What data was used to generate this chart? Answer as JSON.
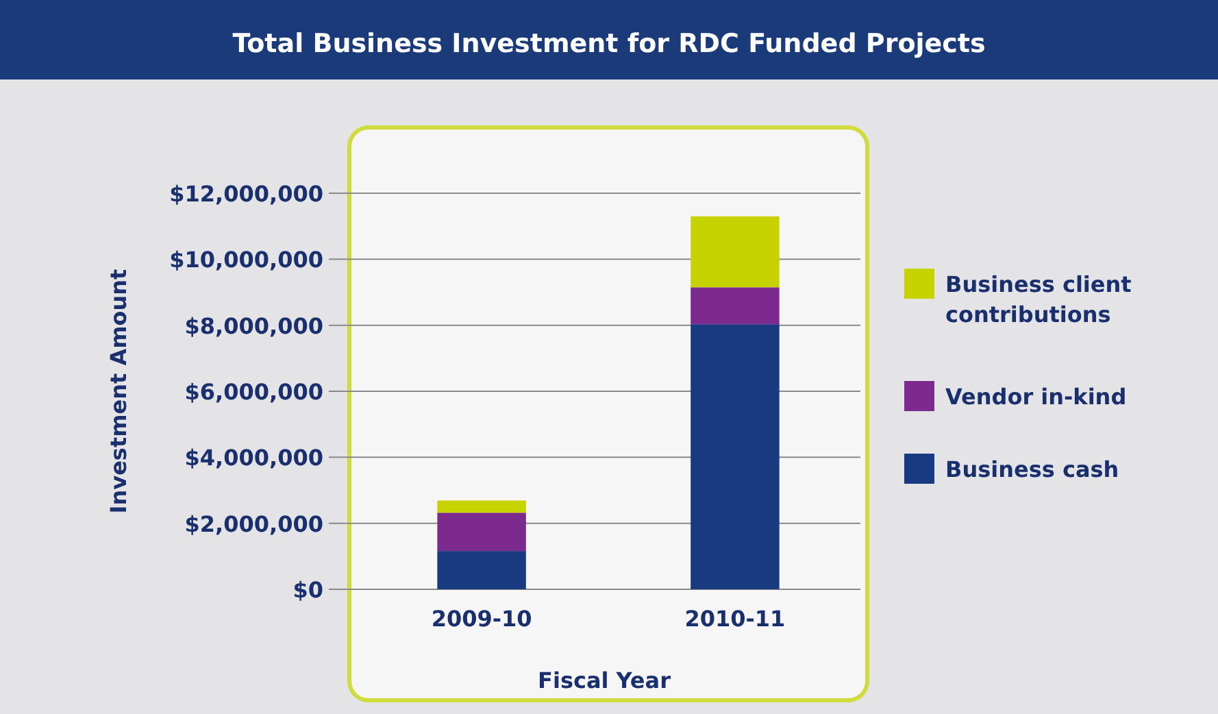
{
  "chart_data": {
    "type": "bar",
    "title": "Total Business Investment for RDC Funded Projects",
    "xlabel": "Fiscal Year",
    "ylabel": "Investment Amount",
    "categories": [
      "2009-10",
      "2010-11"
    ],
    "stacked": true,
    "series": [
      {
        "name": "Business cash",
        "color": "#173a80",
        "values": [
          1160000,
          8030000
        ]
      },
      {
        "name": "Vendor in-kind",
        "color": "#7d2a8f",
        "values": [
          1160000,
          1120000
        ]
      },
      {
        "name": "Business client contributions",
        "color": "#c6d300",
        "values": [
          370000,
          2150000
        ]
      }
    ],
    "ylim": [
      0,
      12000000
    ],
    "yticks": [
      {
        "value": 0,
        "label": "$0"
      },
      {
        "value": 2000000,
        "label": "$2,000,000"
      },
      {
        "value": 4000000,
        "label": "$4,000,000"
      },
      {
        "value": 6000000,
        "label": "$6,000,000"
      },
      {
        "value": 8000000,
        "label": "$8,000,000"
      },
      {
        "value": 10000000,
        "label": "$10,000,000"
      },
      {
        "value": 12000000,
        "label": "$12,000,000"
      }
    ],
    "grid": "y",
    "legend": "right"
  }
}
